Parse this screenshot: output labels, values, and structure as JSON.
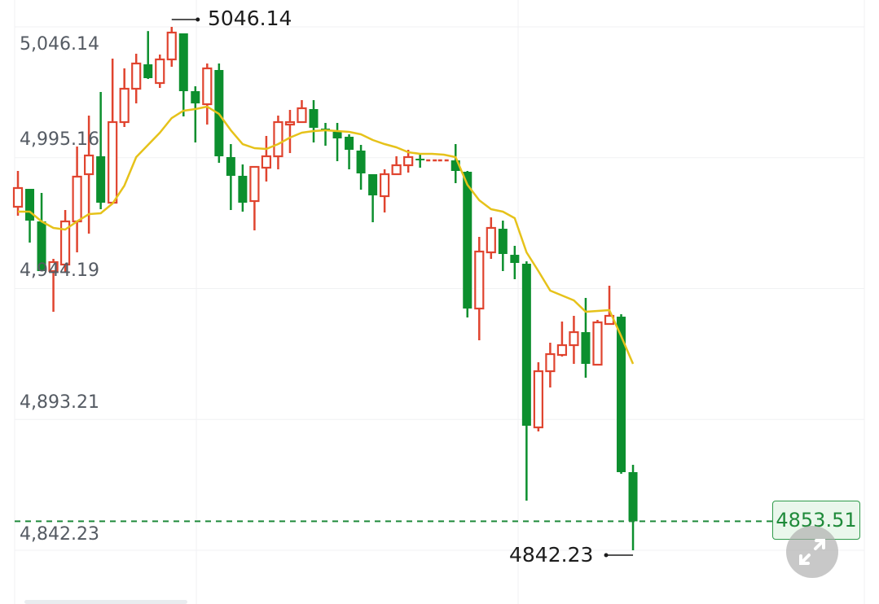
{
  "chart_data": {
    "type": "candlestick",
    "title": "",
    "xlabel": "",
    "ylabel": "",
    "ylim": [
      4842.23,
      5046.14
    ],
    "y_ticks": [
      "5,046.14",
      "4,995.16",
      "4,944.19",
      "4,893.21",
      "4,842.23"
    ],
    "y_tick_values": [
      5046.14,
      4995.16,
      4944.19,
      4893.21,
      4842.23
    ],
    "grid": true,
    "colors": {
      "up": "#e0442f",
      "down": "#0c8f2e",
      "ma": "#e6c21a",
      "last_price": "#1f8a3a"
    },
    "candles": [
      [
        4976.06,
        4990.01,
        4972.57,
        4983.35
      ],
      [
        4983.03,
        4983.03,
        4962.1,
        4970.66
      ],
      [
        4970.35,
        4981.45,
        4951.0,
        4951.0
      ],
      [
        4951.0,
        4955.76,
        4935.15,
        4954.49
      ],
      [
        4953.54,
        4974.79,
        4950.37,
        4970.35
      ],
      [
        4970.35,
        4999.52,
        4958.3,
        4987.79
      ],
      [
        4988.74,
        5011.57,
        4965.59,
        4996.03
      ],
      [
        4995.72,
        5020.77,
        4975.1,
        4977.64
      ],
      [
        4977.64,
        5033.77,
        4977.64,
        5009.04
      ],
      [
        5009.04,
        5029.97,
        5007.13,
        5022.04
      ],
      [
        5022.04,
        5035.67,
        5016.33,
        5031.87
      ],
      [
        5031.55,
        5044.5,
        5025.85,
        5026.16
      ],
      [
        5024.26,
        5035.36,
        5022.35,
        5033.46
      ],
      [
        5033.46,
        5046.14,
        5030.6,
        5043.92
      ],
      [
        5043.6,
        5043.6,
        5011.26,
        5021.09
      ],
      [
        5021.09,
        5022.99,
        5001.11,
        5016.33
      ],
      [
        5016.01,
        5031.87,
        5008.08,
        5029.97
      ],
      [
        5029.33,
        5031.87,
        4993.18,
        4995.72
      ],
      [
        4995.4,
        5000.47,
        4974.79,
        4988.11
      ],
      [
        4988.11,
        4992.54,
        4974.15,
        4977.64
      ],
      [
        4978.27,
        4991.59,
        4966.86,
        4991.59
      ],
      [
        4991.28,
        5003.65,
        4985.89,
        4995.72
      ],
      [
        4995.72,
        5011.57,
        4990.64,
        5009.04
      ],
      [
        5008.08,
        5013.79,
        4996.98,
        5009.04
      ],
      [
        5009.04,
        5017.6,
        5009.04,
        5014.43
      ],
      [
        5014.11,
        5017.6,
        5001.11,
        5006.82
      ],
      [
        5006.5,
        5008.72,
        4999.84,
        5005.86
      ],
      [
        5005.23,
        5008.72,
        4993.81,
        5002.69
      ],
      [
        5003.33,
        5004.28,
        4990.64,
        4998.25
      ],
      [
        4997.94,
        5000.16,
        4982.71,
        4989.06
      ],
      [
        4988.74,
        4988.74,
        4970.03,
        4980.49
      ],
      [
        4980.18,
        4990.64,
        4973.83,
        4988.74
      ],
      [
        4988.74,
        4995.72,
        4988.74,
        4992.23
      ],
      [
        4992.23,
        4998.25,
        4989.37,
        4995.4
      ],
      [
        4994.77,
        4996.67,
        4991.28,
        4994.13
      ],
      [
        4994.13,
        4994.13,
        4994.13,
        4994.13
      ],
      [
        4994.13,
        4994.13,
        4994.13,
        4994.13
      ],
      [
        4994.13,
        5000.47,
        4985.25,
        4990.01
      ],
      [
        4989.69,
        4990.01,
        4932.93,
        4936.41
      ],
      [
        4936.41,
        4964.32,
        4924.04,
        4958.61
      ],
      [
        4958.3,
        4971.93,
        4955.76,
        4967.81
      ],
      [
        4967.49,
        4970.66,
        4951.0,
        4957.66
      ],
      [
        4957.34,
        4960.83,
        4947.83,
        4954.17
      ],
      [
        4953.86,
        4954.8,
        4861.57,
        4890.75
      ],
      [
        4890.11,
        4915.48,
        4888.53,
        4911.99
      ],
      [
        4911.99,
        4923.09,
        4905.65,
        4918.65
      ],
      [
        4918.33,
        4931.34,
        4917.7,
        4922.14
      ],
      [
        4922.14,
        4933.56,
        4914.85,
        4927.21
      ],
      [
        4927.21,
        4940.54,
        4909.46,
        4914.85
      ],
      [
        4914.53,
        4931.98,
        4914.53,
        4931.02
      ],
      [
        4930.39,
        4945.29,
        4930.07,
        4933.56
      ],
      [
        4933.24,
        4934.19,
        4872.04,
        4872.67
      ],
      [
        4872.67,
        4875.52,
        4842.23,
        4853.51
      ]
    ],
    "candle_fields": [
      "open",
      "high",
      "low",
      "close"
    ],
    "moving_average": [
      4974.15,
      4974.15,
      4970.35,
      4967.81,
      4967.17,
      4970.35,
      4973.2,
      4973.52,
      4977.32,
      4984.3,
      4995.4,
      5000.16,
      5004.91,
      5010.62,
      5013.48,
      5014.11,
      5015.06,
      5012.21,
      5005.86,
      5000.47,
      4998.89,
      4998.57,
      5000.47,
      5003.01,
      5004.91,
      5005.55,
      5005.86,
      5005.55,
      5005.23,
      5004.28,
      5002.06,
      5000.47,
      4999.21,
      4997.3,
      4996.67,
      4996.67,
      4996.35,
      4995.4,
      4984.62,
      4978.59,
      4975.1,
      4974.15,
      4971.61,
      4958.3,
      4951.0,
      4943.39,
      4941.49,
      4939.59,
      4935.15,
      4935.46,
      4935.78,
      4925.63,
      4914.85
    ],
    "max_label": "5046.14",
    "min_label": "4842.23",
    "last_price": "4853.51",
    "last_price_value": 4853.51
  },
  "controls": {
    "expand_icon": "expand-arrows-icon"
  }
}
